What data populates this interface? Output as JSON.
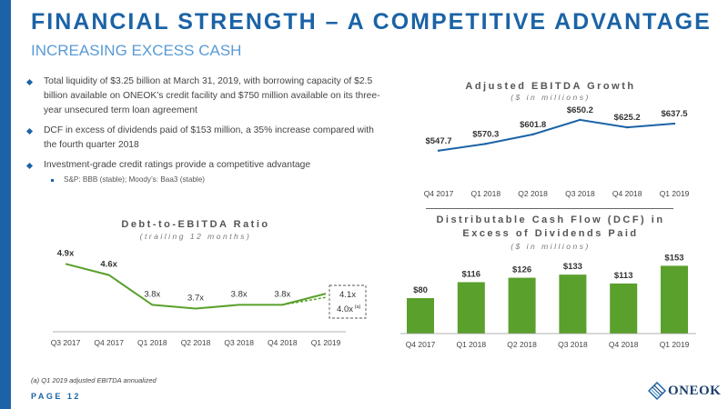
{
  "header": {
    "title": "FINANCIAL STRENGTH – A COMPETITIVE ADVANTAGE",
    "subtitle": "INCREASING EXCESS CASH"
  },
  "bullets": [
    "Total liquidity of $3.25 billion at March 31, 2019, with borrowing capacity of $2.5 billion available on ONEOK’s credit facility and $750 million available on its three-year unsecured term loan agreement",
    "DCF in excess of dividends paid of $153 million, a 35% increase compared with the fourth quarter 2018",
    "Investment-grade credit ratings provide a competitive advantage"
  ],
  "sub_bullet": "S&P: BBB (stable);  Moody’s: Baa3 (stable)",
  "footnote": "(a) Q1 2019 adjusted EBITDA annualized",
  "page_label": "PAGE 12",
  "logo_text": "ONEOK",
  "colors": {
    "brand_blue": "#1b63a6",
    "light_blue": "#5a9bd5",
    "green": "#5aa02c"
  },
  "chart_data": [
    {
      "type": "line",
      "title": "Adjusted EBITDA Growth",
      "subtitle": "($ in millions)",
      "categories": [
        "Q4 2017",
        "Q1 2018",
        "Q2 2018",
        "Q3 2018",
        "Q4 2018",
        "Q1 2019"
      ],
      "values": [
        547.7,
        570.3,
        601.8,
        650.2,
        625.2,
        637.5
      ],
      "value_labels": [
        "$547.7",
        "$570.3",
        "$601.8",
        "$650.2",
        "$625.2",
        "$637.5"
      ],
      "ylim": [
        420,
        680
      ],
      "grid": false,
      "color": "#1b63a6"
    },
    {
      "type": "line",
      "title": "Debt-to-EBITDA Ratio",
      "subtitle": "(trailing 12 months)",
      "categories": [
        "Q3 2017",
        "Q4 2017",
        "Q1 2018",
        "Q2 2018",
        "Q3 2018",
        "Q4 2018",
        "Q1 2019"
      ],
      "values": [
        4.9,
        4.6,
        3.8,
        3.7,
        3.8,
        3.8,
        4.1
      ],
      "value_labels": [
        "4.9x",
        "4.6x",
        "3.8x",
        "3.7x",
        "3.8x",
        "3.8x",
        "4.1x"
      ],
      "annualized_value": 4.0,
      "annualized_label": "4.0x",
      "annualized_note": "(a)",
      "ylim": [
        3.2,
        5.2
      ],
      "grid": false,
      "color": "#5aa02c"
    },
    {
      "type": "bar",
      "title": "Distributable Cash Flow (DCF) in Excess of Dividends Paid",
      "subtitle": "($ in millions)",
      "categories": [
        "Q4 2017",
        "Q1 2018",
        "Q2 2018",
        "Q3 2018",
        "Q4 2018",
        "Q1 2019"
      ],
      "values": [
        80,
        116,
        126,
        133,
        113,
        153
      ],
      "value_labels": [
        "$80",
        "$116",
        "$126",
        "$133",
        "$113",
        "$153"
      ],
      "ylim": [
        0,
        160
      ],
      "grid": false,
      "color": "#5aa02c"
    }
  ]
}
